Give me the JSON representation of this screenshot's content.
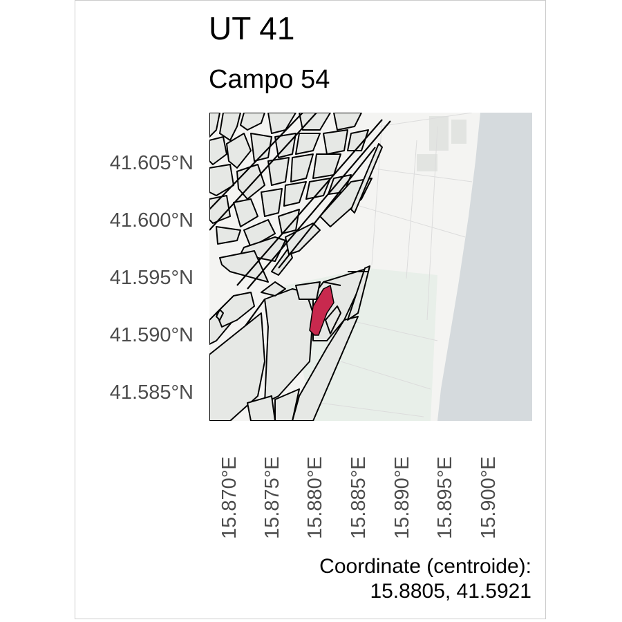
{
  "title": "UT 41",
  "subtitle": "Campo 54",
  "y_axis_labels": [
    "41.605°N",
    "41.600°N",
    "41.595°N",
    "41.590°N",
    "41.585°N"
  ],
  "x_axis_labels": [
    "15.870°E",
    "15.875°E",
    "15.880°E",
    "15.885°E",
    "15.890°E",
    "15.895°E",
    "15.900°E"
  ],
  "caption": {
    "line1": "Coordinate (centroide):",
    "line2": "15.8805, 41.5921"
  },
  "map_colors": {
    "land": "#f4f4f2",
    "parcels": "#e6e8e5",
    "sea": "#d5dadd",
    "green_area": "#e8efe9",
    "highlight": "#c8294e",
    "outline": "#000000"
  }
}
